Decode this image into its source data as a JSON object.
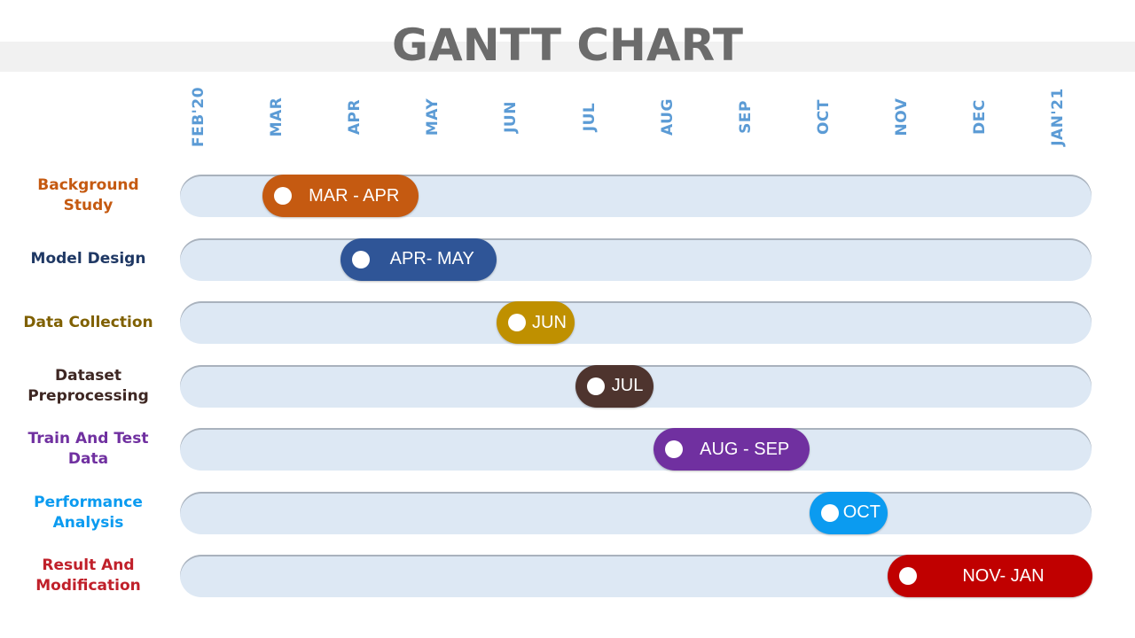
{
  "title": "GANTT CHART",
  "chart_data": {
    "type": "gantt",
    "title": "GANTT CHART",
    "months": [
      "FEB'20",
      "MAR",
      "APR",
      "MAY",
      "JUN",
      "JUL",
      "AUG",
      "SEP",
      "OCT",
      "NOV",
      "DEC",
      "JAN'21"
    ],
    "tasks": [
      {
        "name": "Background Study",
        "label": "MAR - APR",
        "start": "MAR",
        "end": "APR",
        "color": "#c55a11",
        "label_color": "#c55a11"
      },
      {
        "name": "Model Design",
        "label": "APR- MAY",
        "start": "APR",
        "end": "MAY",
        "color": "#2f5597",
        "label_color": "#1f3864"
      },
      {
        "name": "Data Collection",
        "label": "JUN",
        "start": "JUN",
        "end": "JUN",
        "color": "#bf9000",
        "label_color": "#7f6000"
      },
      {
        "name": "Dataset Preprocessing",
        "label": "JUL",
        "start": "JUL",
        "end": "JUL",
        "color": "#4e342e",
        "label_color": "#3e2723"
      },
      {
        "name": "Train And Test Data",
        "label": "AUG - SEP",
        "start": "AUG",
        "end": "SEP",
        "color": "#7030a0",
        "label_color": "#7030a0"
      },
      {
        "name": "Performance Analysis",
        "label": "OCT",
        "start": "OCT",
        "end": "OCT",
        "color": "#0b9bf0",
        "label_color": "#0b9bf0"
      },
      {
        "name": "Result And Modification",
        "label": "NOV- JAN",
        "start": "NOV",
        "end": "JAN'21",
        "color": "#c00000",
        "label_color": "#c0202a"
      }
    ]
  }
}
